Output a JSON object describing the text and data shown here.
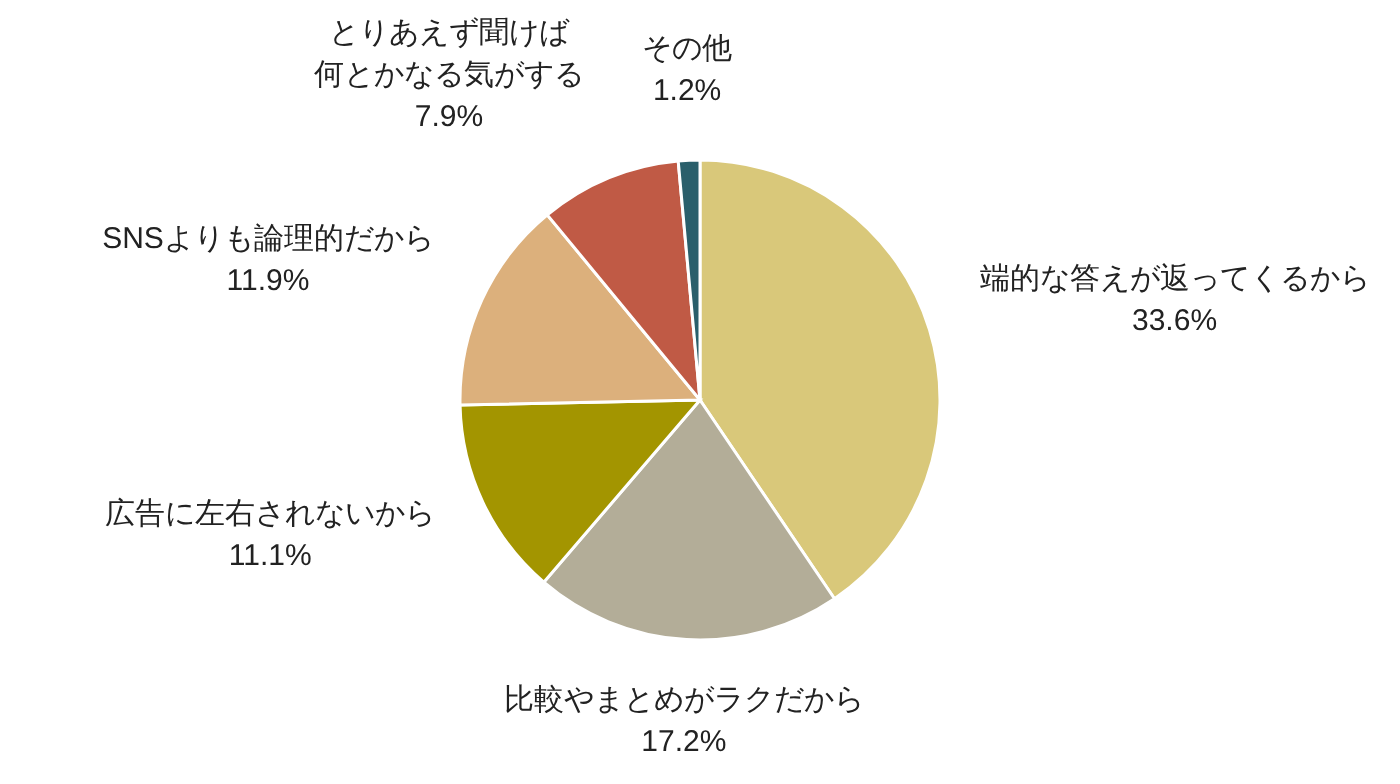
{
  "chart_data": {
    "type": "pie",
    "categories": [
      "端的な答えが返ってくるから",
      "比較やまとめがラクだから",
      "広告に左右されないから",
      "SNSよりも論理的だから",
      "とりあえず聞けば何とかなる気がする",
      "その他"
    ],
    "values": [
      33.6,
      17.2,
      11.1,
      11.9,
      7.9,
      1.2
    ],
    "value_labels": [
      "33.6%",
      "17.2%",
      "11.1%",
      "11.9%",
      "7.9%",
      "1.2%"
    ],
    "colors": [
      "#d9c87a",
      "#b3ad98",
      "#a39500",
      "#dcb07c",
      "#c05a45",
      "#2a5f6b"
    ]
  }
}
